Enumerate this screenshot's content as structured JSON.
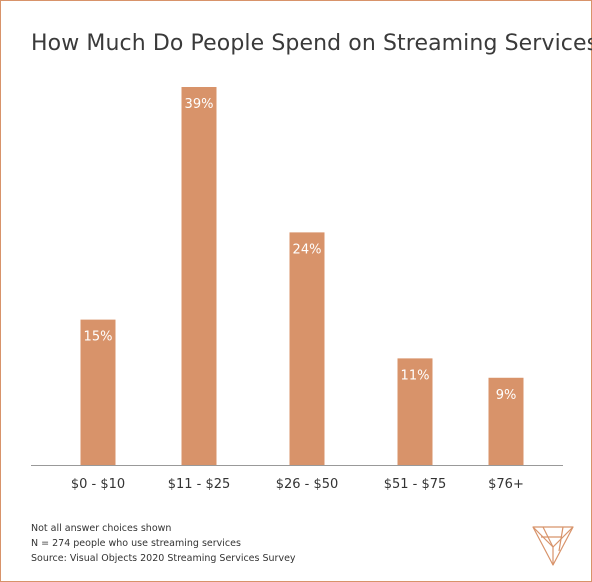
{
  "chart_data": {
    "type": "bar",
    "title": "How Much Do People Spend on Streaming Services?",
    "categories": [
      "$0 - $10",
      "$11 - $25",
      "$26 - $50",
      "$51 - $75",
      "$76+"
    ],
    "values": [
      15,
      39,
      24,
      11,
      9
    ],
    "value_labels": [
      "15%",
      "39%",
      "24%",
      "11%",
      "9%"
    ],
    "unit": "%",
    "ylim": [
      0,
      39
    ],
    "grid": false,
    "bar_color": "#d8936a",
    "axis_color": "#999999"
  },
  "notes": [
    "Not all answer choices shown",
    "N = 274 people who use streaming services",
    "Source: Visual Objects 2020 Streaming Services Survey"
  ],
  "logo": {
    "icon": "visual-objects-logo-icon",
    "color": "#d8936a"
  }
}
